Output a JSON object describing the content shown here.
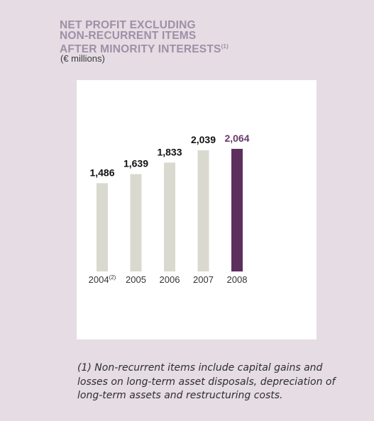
{
  "chart_data": {
    "type": "bar",
    "title_lines": [
      "NET PROFIT EXCLUDING",
      "NON-RECURRENT ITEMS",
      "AFTER MINORITY INTERESTS"
    ],
    "title_note": "(1)",
    "units": "(€ millions)",
    "categories": [
      "2004",
      "2005",
      "2006",
      "2007",
      "2008"
    ],
    "category_notes": [
      "(2)",
      "",
      "",
      "",
      ""
    ],
    "values": [
      1486,
      1639,
      1833,
      2039,
      2064
    ],
    "value_labels": [
      "1,486",
      "1,639",
      "1,833",
      "2,039",
      "2,064"
    ],
    "highlight_index": 4,
    "ylim": [
      0,
      2100
    ],
    "grid": false,
    "colors": {
      "bar": "#d9d9d0",
      "highlight": "#5c2f5c",
      "label": "#111111",
      "highlight_label": "#6a3a6a",
      "title": "#9f8fa6"
    }
  },
  "footnote": "(1) Non-recurrent items include capital gains and losses on long-term asset disposals, depreciation of long-term assets and restructuring costs."
}
